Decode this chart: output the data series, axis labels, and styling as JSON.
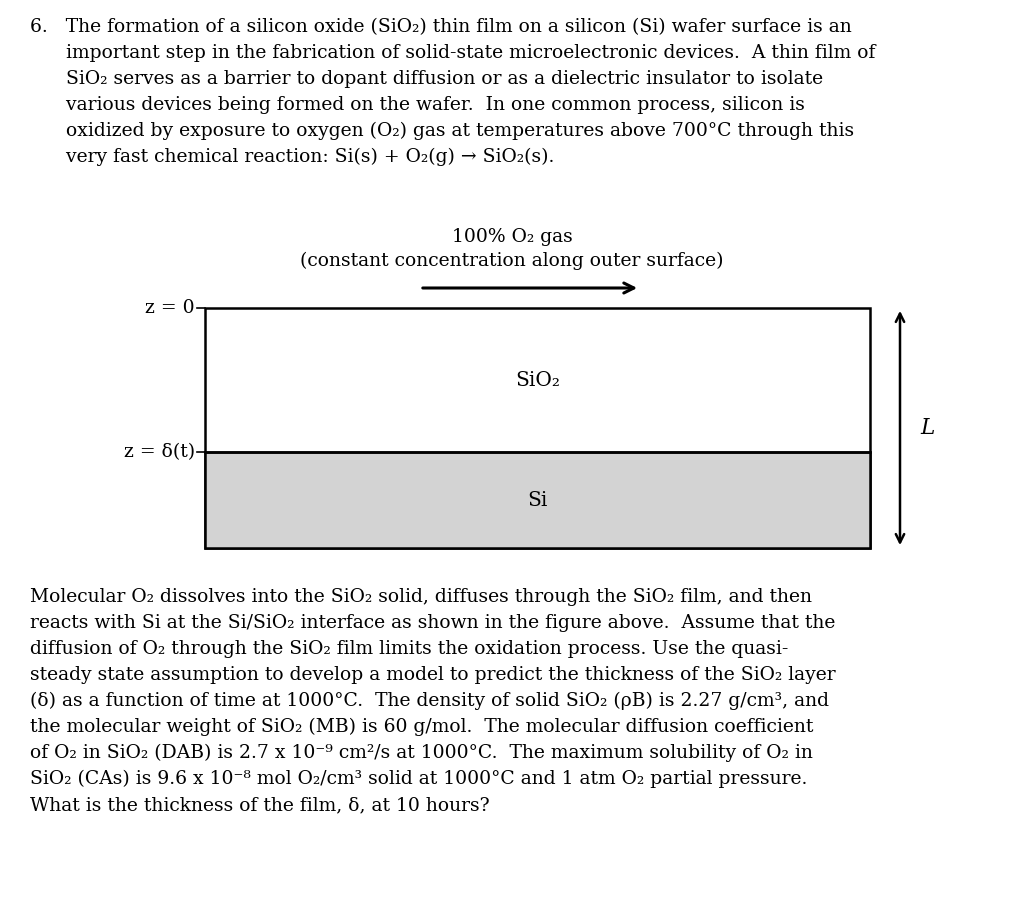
{
  "bg_color": "#ffffff",
  "font_family": "serif",
  "text_fontsize": 13.5,
  "diagram_label_fontsize": 13.5,
  "diagram_inner_fontsize": 14.5,
  "para1_line1": "6.   The formation of a silicon oxide (SiO₂) thin film on a silicon (Si) wafer surface is an",
  "para1_line2": "      important step in the fabrication of solid-state microelectronic devices.  A thin film of",
  "para1_line3": "      SiO₂ serves as a barrier to dopant diffusion or as a dielectric insulator to isolate",
  "para1_line4": "      various devices being formed on the wafer.  In one common process, silicon is",
  "para1_line5": "      oxidized by exposure to oxygen (O₂) gas at temperatures above 700°C through this",
  "para1_line6": "      very fast chemical reaction: Si(s) + O₂(g) → SiO₂(s).",
  "label_o2_gas": "100% O₂ gas",
  "label_concentration": "(constant concentration along outer surface)",
  "label_sio2": "SiO₂",
  "label_si": "Si",
  "label_z0": "z = 0",
  "label_zdelta": "z = δ(t)",
  "label_L": "L",
  "para2_line1": "Molecular O₂ dissolves into the SiO₂ solid, diffuses through the SiO₂ film, and then",
  "para2_line2": "reacts with Si at the Si/SiO₂ interface as shown in the figure above.  Assume that the",
  "para2_line3": "diffusion of O₂ through the SiO₂ film limits the oxidation process. Use the quasi-",
  "para2_line4": "steady state assumption to develop a model to predict the thickness of the SiO₂ layer",
  "para2_line5": "(δ) as a function of time at 1000°C.  The density of solid SiO₂ (ρB) is 2.27 g/cm³, and",
  "para2_line6": "the molecular weight of SiO₂ (MB) is 60 g/mol.  The molecular diffusion coefficient",
  "para2_line7": "of O₂ in SiO₂ (DAB) is 2.7 x 10⁻⁹ cm²/s at 1000°C.  The maximum solubility of O₂ in",
  "para2_line8": "SiO₂ (CAs) is 9.6 x 10⁻⁸ mol O₂/cm³ solid at 1000°C and 1 atm O₂ partial pressure.",
  "para2_line9": "What is the thickness of the film, δ, at 10 hours?",
  "si_fill": "#d3d3d3",
  "sio2_fill": "#ffffff",
  "lw": 1.8
}
